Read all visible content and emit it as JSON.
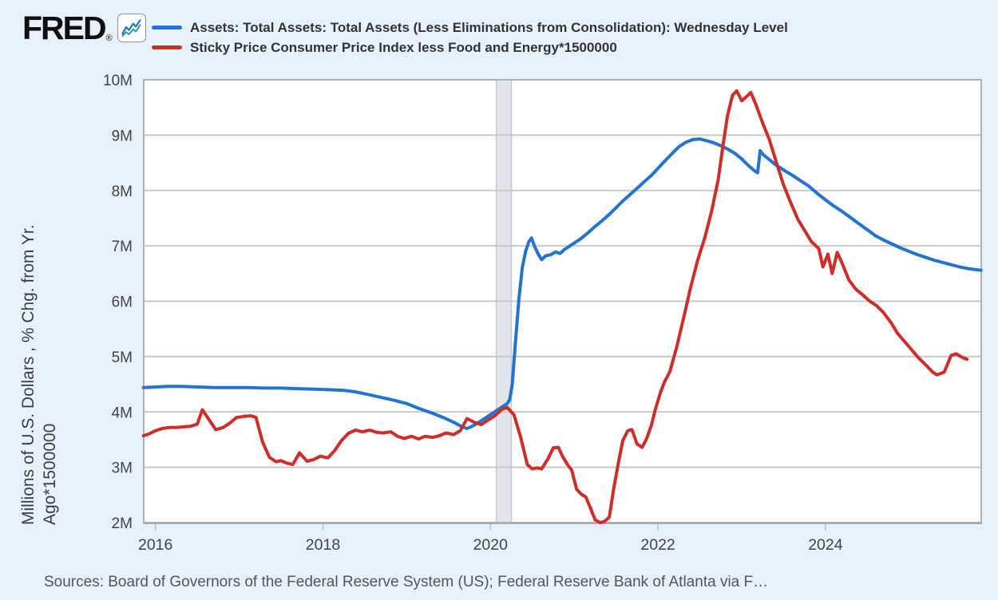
{
  "header": {
    "logo_text": "FRED",
    "logo_registered": "®",
    "logo_icon": "fred-line-chart-icon",
    "legend": [
      {
        "label": "Assets: Total Assets: Total Assets (Less Eliminations from Consolidation): Wednesday Level",
        "color": "#2273d2"
      },
      {
        "label": "Sticky Price Consumer Price Index less Food and Energy*1500000",
        "color": "#cf2d28"
      }
    ]
  },
  "y_axis": {
    "title_line1": "Millions of U.S. Dollars , % Chg. from Yr.",
    "title_line2": "Ago*1500000"
  },
  "footer": {
    "sources": "Sources: Board of Governors of the Federal Reserve System (US); Federal Reserve Bank of Atlanta via F…"
  },
  "chart_data": {
    "type": "line",
    "title": "",
    "xlabel": "",
    "ylabel": "Millions of U.S. Dollars , % Chg. from Yr. Ago*1500000",
    "x_range_years": [
      2015.86,
      2025.86
    ],
    "y_range_millions": [
      2,
      10
    ],
    "grid": "horizontal",
    "legend_position": "top",
    "background_color": "#e8f1f9",
    "plot_background": "#ffffff",
    "gridline_color": "#c9c9c9",
    "border_color": "#aeb1b5",
    "recession_band": {
      "x": [
        2020.07,
        2020.25
      ],
      "fill": "#e2e5e9",
      "edge": "#c6cacf"
    },
    "y_ticks": [
      {
        "label": "10M",
        "value": 10
      },
      {
        "label": "9M",
        "value": 9
      },
      {
        "label": "8M",
        "value": 8
      },
      {
        "label": "7M",
        "value": 7
      },
      {
        "label": "6M",
        "value": 6
      },
      {
        "label": "5M",
        "value": 5
      },
      {
        "label": "4M",
        "value": 4
      },
      {
        "label": "3M",
        "value": 3
      },
      {
        "label": "2M",
        "value": 2
      }
    ],
    "x_ticks": [
      {
        "label": "2016",
        "year": 2016
      },
      {
        "label": "2018",
        "year": 2018
      },
      {
        "label": "2020",
        "year": 2020
      },
      {
        "label": "2022",
        "year": 2022
      },
      {
        "label": "2024",
        "year": 2024
      }
    ],
    "series": [
      {
        "name": "Assets: Total Assets: Total Assets (Less Eliminations from Consolidation): Wednesday Level",
        "color": "#2273d2",
        "units": "Millions of U.S. Dollars",
        "points": [
          [
            2015.857,
            4.44
          ],
          [
            2016.0,
            4.45
          ],
          [
            2016.15,
            4.46
          ],
          [
            2016.3,
            4.46
          ],
          [
            2016.5,
            4.45
          ],
          [
            2016.7,
            4.44
          ],
          [
            2016.9,
            4.44
          ],
          [
            2017.1,
            4.44
          ],
          [
            2017.3,
            4.43
          ],
          [
            2017.5,
            4.43
          ],
          [
            2017.7,
            4.42
          ],
          [
            2017.9,
            4.41
          ],
          [
            2018.1,
            4.4
          ],
          [
            2018.25,
            4.39
          ],
          [
            2018.4,
            4.36
          ],
          [
            2018.55,
            4.31
          ],
          [
            2018.7,
            4.26
          ],
          [
            2018.85,
            4.21
          ],
          [
            2019.0,
            4.15
          ],
          [
            2019.15,
            4.06
          ],
          [
            2019.3,
            3.98
          ],
          [
            2019.45,
            3.89
          ],
          [
            2019.55,
            3.82
          ],
          [
            2019.65,
            3.74
          ],
          [
            2019.72,
            3.7
          ],
          [
            2019.78,
            3.74
          ],
          [
            2019.85,
            3.8
          ],
          [
            2019.92,
            3.87
          ],
          [
            2020.0,
            3.95
          ],
          [
            2020.08,
            4.03
          ],
          [
            2020.15,
            4.1
          ],
          [
            2020.2,
            4.15
          ],
          [
            2020.23,
            4.22
          ],
          [
            2020.26,
            4.5
          ],
          [
            2020.3,
            5.3
          ],
          [
            2020.34,
            6.05
          ],
          [
            2020.38,
            6.6
          ],
          [
            2020.42,
            6.9
          ],
          [
            2020.46,
            7.08
          ],
          [
            2020.49,
            7.14
          ],
          [
            2020.53,
            6.98
          ],
          [
            2020.57,
            6.85
          ],
          [
            2020.61,
            6.75
          ],
          [
            2020.66,
            6.82
          ],
          [
            2020.72,
            6.84
          ],
          [
            2020.78,
            6.89
          ],
          [
            2020.83,
            6.86
          ],
          [
            2020.88,
            6.93
          ],
          [
            2020.94,
            6.99
          ],
          [
            2021.0,
            7.05
          ],
          [
            2021.08,
            7.13
          ],
          [
            2021.16,
            7.23
          ],
          [
            2021.25,
            7.35
          ],
          [
            2021.33,
            7.45
          ],
          [
            2021.42,
            7.57
          ],
          [
            2021.5,
            7.69
          ],
          [
            2021.58,
            7.81
          ],
          [
            2021.67,
            7.93
          ],
          [
            2021.75,
            8.04
          ],
          [
            2021.83,
            8.15
          ],
          [
            2021.92,
            8.27
          ],
          [
            2022.0,
            8.4
          ],
          [
            2022.08,
            8.53
          ],
          [
            2022.17,
            8.67
          ],
          [
            2022.25,
            8.79
          ],
          [
            2022.33,
            8.87
          ],
          [
            2022.42,
            8.92
          ],
          [
            2022.5,
            8.93
          ],
          [
            2022.58,
            8.9
          ],
          [
            2022.67,
            8.86
          ],
          [
            2022.75,
            8.81
          ],
          [
            2022.83,
            8.75
          ],
          [
            2022.92,
            8.67
          ],
          [
            2023.0,
            8.57
          ],
          [
            2023.08,
            8.45
          ],
          [
            2023.15,
            8.36
          ],
          [
            2023.19,
            8.32
          ],
          [
            2023.22,
            8.72
          ],
          [
            2023.26,
            8.64
          ],
          [
            2023.32,
            8.57
          ],
          [
            2023.4,
            8.47
          ],
          [
            2023.5,
            8.37
          ],
          [
            2023.6,
            8.28
          ],
          [
            2023.7,
            8.18
          ],
          [
            2023.8,
            8.08
          ],
          [
            2023.9,
            7.95
          ],
          [
            2024.0,
            7.83
          ],
          [
            2024.1,
            7.72
          ],
          [
            2024.2,
            7.62
          ],
          [
            2024.3,
            7.51
          ],
          [
            2024.4,
            7.4
          ],
          [
            2024.5,
            7.29
          ],
          [
            2024.6,
            7.18
          ],
          [
            2024.7,
            7.1
          ],
          [
            2024.8,
            7.03
          ],
          [
            2024.9,
            6.96
          ],
          [
            2025.0,
            6.9
          ],
          [
            2025.1,
            6.84
          ],
          [
            2025.2,
            6.79
          ],
          [
            2025.3,
            6.74
          ],
          [
            2025.4,
            6.7
          ],
          [
            2025.5,
            6.66
          ],
          [
            2025.6,
            6.62
          ],
          [
            2025.7,
            6.59
          ],
          [
            2025.8,
            6.57
          ],
          [
            2025.857,
            6.56
          ]
        ]
      },
      {
        "name": "Sticky Price Consumer Price Index less Food and Energy*1500000",
        "color": "#cf2d28",
        "units": "% Chg. from Yr. Ago*1500000",
        "points": [
          [
            2015.857,
            3.57
          ],
          [
            2015.92,
            3.6
          ],
          [
            2016.0,
            3.66
          ],
          [
            2016.08,
            3.7
          ],
          [
            2016.17,
            3.72
          ],
          [
            2016.25,
            3.72
          ],
          [
            2016.33,
            3.73
          ],
          [
            2016.42,
            3.74
          ],
          [
            2016.5,
            3.78
          ],
          [
            2016.56,
            4.04
          ],
          [
            2016.64,
            3.86
          ],
          [
            2016.72,
            3.68
          ],
          [
            2016.81,
            3.72
          ],
          [
            2016.89,
            3.8
          ],
          [
            2016.97,
            3.9
          ],
          [
            2017.06,
            3.92
          ],
          [
            2017.14,
            3.93
          ],
          [
            2017.2,
            3.9
          ],
          [
            2017.28,
            3.45
          ],
          [
            2017.36,
            3.18
          ],
          [
            2017.44,
            3.1
          ],
          [
            2017.5,
            3.12
          ],
          [
            2017.56,
            3.08
          ],
          [
            2017.64,
            3.05
          ],
          [
            2017.72,
            3.26
          ],
          [
            2017.81,
            3.11
          ],
          [
            2017.89,
            3.14
          ],
          [
            2017.97,
            3.2
          ],
          [
            2018.06,
            3.17
          ],
          [
            2018.14,
            3.3
          ],
          [
            2018.22,
            3.48
          ],
          [
            2018.31,
            3.62
          ],
          [
            2018.39,
            3.67
          ],
          [
            2018.47,
            3.64
          ],
          [
            2018.56,
            3.67
          ],
          [
            2018.64,
            3.63
          ],
          [
            2018.72,
            3.62
          ],
          [
            2018.81,
            3.64
          ],
          [
            2018.89,
            3.56
          ],
          [
            2018.97,
            3.52
          ],
          [
            2019.06,
            3.56
          ],
          [
            2019.14,
            3.51
          ],
          [
            2019.22,
            3.56
          ],
          [
            2019.31,
            3.54
          ],
          [
            2019.39,
            3.57
          ],
          [
            2019.47,
            3.62
          ],
          [
            2019.56,
            3.59
          ],
          [
            2019.64,
            3.66
          ],
          [
            2019.72,
            3.88
          ],
          [
            2019.81,
            3.81
          ],
          [
            2019.89,
            3.77
          ],
          [
            2019.97,
            3.85
          ],
          [
            2020.06,
            3.94
          ],
          [
            2020.14,
            4.05
          ],
          [
            2020.2,
            4.08
          ],
          [
            2020.28,
            3.95
          ],
          [
            2020.36,
            3.55
          ],
          [
            2020.44,
            3.05
          ],
          [
            2020.5,
            2.97
          ],
          [
            2020.56,
            2.99
          ],
          [
            2020.61,
            2.97
          ],
          [
            2020.69,
            3.16
          ],
          [
            2020.75,
            3.35
          ],
          [
            2020.81,
            3.36
          ],
          [
            2020.86,
            3.2
          ],
          [
            2020.92,
            3.05
          ],
          [
            2020.97,
            2.95
          ],
          [
            2021.03,
            2.6
          ],
          [
            2021.08,
            2.52
          ],
          [
            2021.14,
            2.46
          ],
          [
            2021.19,
            2.28
          ],
          [
            2021.25,
            2.05
          ],
          [
            2021.31,
            2.0
          ],
          [
            2021.36,
            2.02
          ],
          [
            2021.42,
            2.1
          ],
          [
            2021.47,
            2.6
          ],
          [
            2021.53,
            3.1
          ],
          [
            2021.58,
            3.48
          ],
          [
            2021.64,
            3.66
          ],
          [
            2021.69,
            3.68
          ],
          [
            2021.75,
            3.42
          ],
          [
            2021.81,
            3.36
          ],
          [
            2021.86,
            3.5
          ],
          [
            2021.92,
            3.75
          ],
          [
            2021.97,
            4.05
          ],
          [
            2022.03,
            4.35
          ],
          [
            2022.08,
            4.55
          ],
          [
            2022.14,
            4.72
          ],
          [
            2022.22,
            5.15
          ],
          [
            2022.31,
            5.72
          ],
          [
            2022.39,
            6.25
          ],
          [
            2022.47,
            6.72
          ],
          [
            2022.56,
            7.15
          ],
          [
            2022.64,
            7.62
          ],
          [
            2022.72,
            8.2
          ],
          [
            2022.78,
            8.85
          ],
          [
            2022.83,
            9.35
          ],
          [
            2022.89,
            9.72
          ],
          [
            2022.94,
            9.8
          ],
          [
            2023.0,
            9.62
          ],
          [
            2023.06,
            9.7
          ],
          [
            2023.11,
            9.77
          ],
          [
            2023.17,
            9.55
          ],
          [
            2023.25,
            9.22
          ],
          [
            2023.33,
            8.92
          ],
          [
            2023.42,
            8.48
          ],
          [
            2023.5,
            8.1
          ],
          [
            2023.58,
            7.8
          ],
          [
            2023.67,
            7.48
          ],
          [
            2023.75,
            7.28
          ],
          [
            2023.83,
            7.08
          ],
          [
            2023.92,
            6.95
          ],
          [
            2023.97,
            6.62
          ],
          [
            2024.03,
            6.85
          ],
          [
            2024.08,
            6.5
          ],
          [
            2024.14,
            6.88
          ],
          [
            2024.19,
            6.72
          ],
          [
            2024.28,
            6.38
          ],
          [
            2024.36,
            6.22
          ],
          [
            2024.44,
            6.12
          ],
          [
            2024.53,
            6.0
          ],
          [
            2024.61,
            5.92
          ],
          [
            2024.69,
            5.8
          ],
          [
            2024.78,
            5.62
          ],
          [
            2024.86,
            5.42
          ],
          [
            2024.94,
            5.28
          ],
          [
            2025.03,
            5.12
          ],
          [
            2025.11,
            4.98
          ],
          [
            2025.19,
            4.86
          ],
          [
            2025.28,
            4.72
          ],
          [
            2025.33,
            4.67
          ],
          [
            2025.42,
            4.72
          ],
          [
            2025.5,
            5.02
          ],
          [
            2025.56,
            5.05
          ],
          [
            2025.64,
            4.98
          ],
          [
            2025.69,
            4.95
          ]
        ]
      }
    ]
  }
}
